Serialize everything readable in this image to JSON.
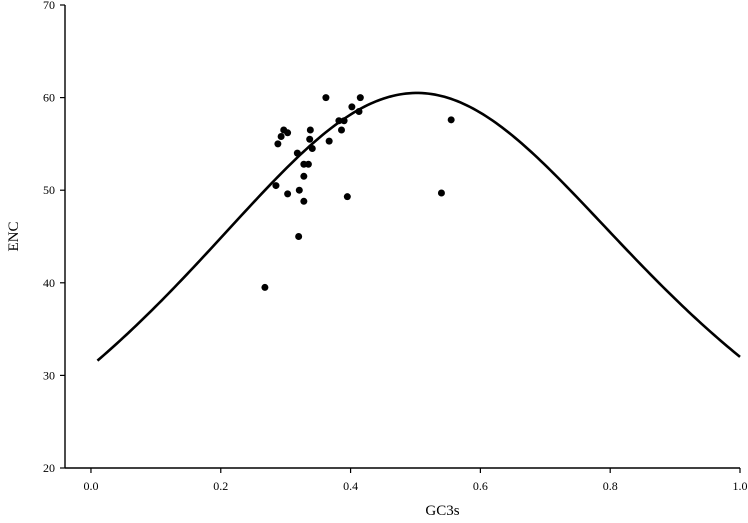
{
  "chart_data": {
    "type": "scatter",
    "title": "",
    "xlabel": "GC3s",
    "ylabel": "ENC",
    "xlim": [
      -0.04,
      1.0
    ],
    "ylim": [
      20,
      70
    ],
    "x_ticks": [
      "0.0",
      "0.2",
      "0.4",
      "0.6",
      "0.8",
      "1.0"
    ],
    "y_ticks": [
      "20",
      "30",
      "40",
      "50",
      "60",
      "70"
    ],
    "grid": false,
    "legend": "none",
    "expected_curve": {
      "formula": "ENC = 2 + GC3s + 29 / (GC3s^2 + (1 - GC3s)^2)",
      "x_range": [
        0.01,
        1.0
      ]
    },
    "points": [
      {
        "x": 0.268,
        "y": 39.5
      },
      {
        "x": 0.285,
        "y": 50.5
      },
      {
        "x": 0.288,
        "y": 55.0
      },
      {
        "x": 0.293,
        "y": 55.8
      },
      {
        "x": 0.297,
        "y": 56.5
      },
      {
        "x": 0.303,
        "y": 56.2
      },
      {
        "x": 0.303,
        "y": 49.6
      },
      {
        "x": 0.318,
        "y": 54.0
      },
      {
        "x": 0.32,
        "y": 45.0
      },
      {
        "x": 0.321,
        "y": 50.0
      },
      {
        "x": 0.328,
        "y": 52.8
      },
      {
        "x": 0.328,
        "y": 51.5
      },
      {
        "x": 0.328,
        "y": 48.8
      },
      {
        "x": 0.335,
        "y": 52.8
      },
      {
        "x": 0.337,
        "y": 55.5
      },
      {
        "x": 0.338,
        "y": 56.5
      },
      {
        "x": 0.341,
        "y": 54.5
      },
      {
        "x": 0.362,
        "y": 60.0
      },
      {
        "x": 0.367,
        "y": 55.3
      },
      {
        "x": 0.382,
        "y": 57.5
      },
      {
        "x": 0.386,
        "y": 56.5
      },
      {
        "x": 0.39,
        "y": 57.5
      },
      {
        "x": 0.395,
        "y": 49.3
      },
      {
        "x": 0.402,
        "y": 59.0
      },
      {
        "x": 0.413,
        "y": 58.5
      },
      {
        "x": 0.415,
        "y": 60.0
      },
      {
        "x": 0.54,
        "y": 49.7
      },
      {
        "x": 0.555,
        "y": 57.6
      }
    ]
  }
}
